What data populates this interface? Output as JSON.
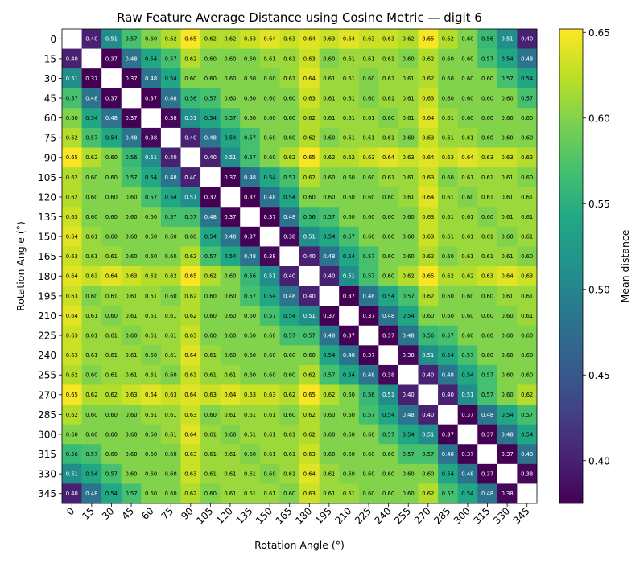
{
  "chart_data": {
    "type": "heatmap",
    "title": "Raw Feature Average Distance using Cosine Metric — digit 6",
    "xlabel": "Rotation Angle (°)",
    "ylabel": "Rotation Angle (°)",
    "x_categories": [
      "0",
      "15",
      "30",
      "45",
      "60",
      "75",
      "90",
      "105",
      "120",
      "135",
      "150",
      "165",
      "180",
      "195",
      "210",
      "225",
      "240",
      "255",
      "270",
      "285",
      "300",
      "315",
      "330",
      "345"
    ],
    "y_categories": [
      "0",
      "15",
      "30",
      "45",
      "60",
      "75",
      "90",
      "105",
      "120",
      "135",
      "150",
      "165",
      "180",
      "195",
      "210",
      "225",
      "240",
      "255",
      "270",
      "285",
      "300",
      "315",
      "330",
      "345"
    ],
    "values": [
      [
        null,
        0.4,
        0.51,
        0.57,
        0.6,
        0.62,
        0.65,
        0.62,
        0.62,
        0.63,
        0.64,
        0.63,
        0.64,
        0.63,
        0.64,
        0.63,
        0.63,
        0.62,
        0.65,
        0.62,
        0.6,
        0.56,
        0.51,
        0.4
      ],
      [
        0.4,
        null,
        0.37,
        0.48,
        0.54,
        0.57,
        0.62,
        0.6,
        0.6,
        0.6,
        0.61,
        0.61,
        0.63,
        0.6,
        0.61,
        0.61,
        0.61,
        0.6,
        0.62,
        0.6,
        0.6,
        0.57,
        0.54,
        0.48
      ],
      [
        0.51,
        0.37,
        null,
        0.37,
        0.48,
        0.54,
        0.6,
        0.6,
        0.6,
        0.6,
        0.6,
        0.61,
        0.64,
        0.61,
        0.61,
        0.6,
        0.61,
        0.61,
        0.62,
        0.6,
        0.6,
        0.6,
        0.57,
        0.54
      ],
      [
        0.57,
        0.48,
        0.37,
        null,
        0.37,
        0.48,
        0.56,
        0.57,
        0.6,
        0.6,
        0.6,
        0.6,
        0.63,
        0.61,
        0.61,
        0.6,
        0.61,
        0.61,
        0.63,
        0.6,
        0.6,
        0.6,
        0.6,
        0.57
      ],
      [
        0.6,
        0.54,
        0.48,
        0.37,
        null,
        0.38,
        0.51,
        0.54,
        0.57,
        0.6,
        0.6,
        0.6,
        0.62,
        0.61,
        0.61,
        0.61,
        0.6,
        0.61,
        0.64,
        0.61,
        0.6,
        0.6,
        0.6,
        0.6
      ],
      [
        0.62,
        0.57,
        0.54,
        0.48,
        0.38,
        null,
        0.4,
        0.48,
        0.54,
        0.57,
        0.6,
        0.6,
        0.62,
        0.6,
        0.61,
        0.61,
        0.61,
        0.6,
        0.63,
        0.61,
        0.61,
        0.6,
        0.6,
        0.6
      ],
      [
        0.65,
        0.62,
        0.6,
        0.56,
        0.51,
        0.4,
        null,
        0.4,
        0.51,
        0.57,
        0.6,
        0.62,
        0.65,
        0.62,
        0.62,
        0.63,
        0.64,
        0.63,
        0.64,
        0.63,
        0.64,
        0.63,
        0.63,
        0.62
      ],
      [
        0.62,
        0.6,
        0.6,
        0.57,
        0.54,
        0.48,
        0.4,
        null,
        0.37,
        0.48,
        0.54,
        0.57,
        0.62,
        0.6,
        0.6,
        0.6,
        0.61,
        0.61,
        0.63,
        0.6,
        0.61,
        0.61,
        0.61,
        0.6
      ],
      [
        0.62,
        0.6,
        0.6,
        0.6,
        0.57,
        0.54,
        0.51,
        0.37,
        null,
        0.37,
        0.48,
        0.54,
        0.6,
        0.6,
        0.6,
        0.6,
        0.6,
        0.61,
        0.64,
        0.61,
        0.6,
        0.61,
        0.61,
        0.61
      ],
      [
        0.63,
        0.6,
        0.6,
        0.6,
        0.6,
        0.57,
        0.57,
        0.48,
        0.37,
        null,
        0.37,
        0.48,
        0.56,
        0.57,
        0.6,
        0.6,
        0.6,
        0.6,
        0.63,
        0.61,
        0.61,
        0.6,
        0.61,
        0.61
      ],
      [
        0.64,
        0.61,
        0.6,
        0.6,
        0.6,
        0.6,
        0.6,
        0.54,
        0.48,
        0.37,
        null,
        0.38,
        0.51,
        0.54,
        0.57,
        0.6,
        0.6,
        0.6,
        0.63,
        0.61,
        0.61,
        0.61,
        0.6,
        0.61
      ],
      [
        0.63,
        0.61,
        0.61,
        0.6,
        0.6,
        0.6,
        0.62,
        0.57,
        0.54,
        0.48,
        0.38,
        null,
        0.4,
        0.48,
        0.54,
        0.57,
        0.6,
        0.6,
        0.62,
        0.6,
        0.61,
        0.61,
        0.61,
        0.6
      ],
      [
        0.64,
        0.63,
        0.64,
        0.63,
        0.62,
        0.62,
        0.65,
        0.62,
        0.6,
        0.56,
        0.51,
        0.4,
        null,
        0.4,
        0.51,
        0.57,
        0.6,
        0.62,
        0.65,
        0.62,
        0.62,
        0.63,
        0.64,
        0.63
      ],
      [
        0.63,
        0.6,
        0.61,
        0.61,
        0.61,
        0.6,
        0.62,
        0.6,
        0.6,
        0.57,
        0.54,
        0.48,
        0.4,
        null,
        0.37,
        0.48,
        0.54,
        0.57,
        0.62,
        0.6,
        0.6,
        0.6,
        0.61,
        0.61
      ],
      [
        0.64,
        0.61,
        0.6,
        0.61,
        0.61,
        0.61,
        0.62,
        0.6,
        0.6,
        0.6,
        0.57,
        0.54,
        0.51,
        0.37,
        null,
        0.37,
        0.48,
        0.54,
        0.6,
        0.6,
        0.6,
        0.6,
        0.6,
        0.61
      ],
      [
        0.63,
        0.61,
        0.61,
        0.6,
        0.61,
        0.61,
        0.63,
        0.6,
        0.6,
        0.6,
        0.6,
        0.57,
        0.57,
        0.48,
        0.37,
        null,
        0.37,
        0.48,
        0.56,
        0.57,
        0.6,
        0.6,
        0.6,
        0.6
      ],
      [
        0.63,
        0.61,
        0.61,
        0.61,
        0.6,
        0.61,
        0.64,
        0.61,
        0.6,
        0.6,
        0.6,
        0.6,
        0.6,
        0.54,
        0.48,
        0.37,
        null,
        0.38,
        0.51,
        0.54,
        0.57,
        0.6,
        0.6,
        0.6
      ],
      [
        0.62,
        0.6,
        0.61,
        0.61,
        0.61,
        0.6,
        0.63,
        0.61,
        0.61,
        0.6,
        0.6,
        0.6,
        0.62,
        0.57,
        0.54,
        0.48,
        0.38,
        null,
        0.4,
        0.48,
        0.54,
        0.57,
        0.6,
        0.6
      ],
      [
        0.65,
        0.62,
        0.62,
        0.63,
        0.64,
        0.63,
        0.64,
        0.63,
        0.64,
        0.63,
        0.63,
        0.62,
        0.65,
        0.62,
        0.6,
        0.56,
        0.51,
        0.4,
        null,
        0.4,
        0.51,
        0.57,
        0.6,
        0.62
      ],
      [
        0.62,
        0.6,
        0.6,
        0.6,
        0.61,
        0.61,
        0.63,
        0.6,
        0.61,
        0.61,
        0.61,
        0.6,
        0.62,
        0.6,
        0.6,
        0.57,
        0.54,
        0.48,
        0.4,
        null,
        0.37,
        0.48,
        0.54,
        0.57
      ],
      [
        0.6,
        0.6,
        0.6,
        0.6,
        0.6,
        0.61,
        0.64,
        0.61,
        0.6,
        0.61,
        0.61,
        0.61,
        0.62,
        0.6,
        0.6,
        0.6,
        0.57,
        0.54,
        0.51,
        0.37,
        null,
        0.37,
        0.48,
        0.54
      ],
      [
        0.56,
        0.57,
        0.6,
        0.6,
        0.6,
        0.6,
        0.63,
        0.61,
        0.61,
        0.6,
        0.61,
        0.61,
        0.63,
        0.6,
        0.6,
        0.6,
        0.6,
        0.57,
        0.57,
        0.48,
        0.37,
        null,
        0.37,
        0.48
      ],
      [
        0.51,
        0.54,
        0.57,
        0.6,
        0.6,
        0.6,
        0.63,
        0.61,
        0.61,
        0.61,
        0.6,
        0.61,
        0.64,
        0.61,
        0.6,
        0.6,
        0.6,
        0.6,
        0.6,
        0.54,
        0.48,
        0.37,
        null,
        0.38
      ],
      [
        0.4,
        0.48,
        0.54,
        0.57,
        0.6,
        0.6,
        0.62,
        0.6,
        0.61,
        0.61,
        0.61,
        0.6,
        0.63,
        0.61,
        0.61,
        0.6,
        0.6,
        0.6,
        0.62,
        0.57,
        0.54,
        0.48,
        0.38,
        null
      ]
    ],
    "zlim": [
      0.375,
      0.652
    ],
    "colormap": "viridis",
    "colorbar": {
      "label": "Mean distance",
      "ticks": [
        "0.40",
        "0.45",
        "0.50",
        "0.55",
        "0.60",
        "0.65"
      ],
      "tick_values": [
        0.4,
        0.45,
        0.5,
        0.55,
        0.6,
        0.65
      ]
    },
    "diagonal_color": "#ffffff",
    "grid": false,
    "legend": "none"
  }
}
